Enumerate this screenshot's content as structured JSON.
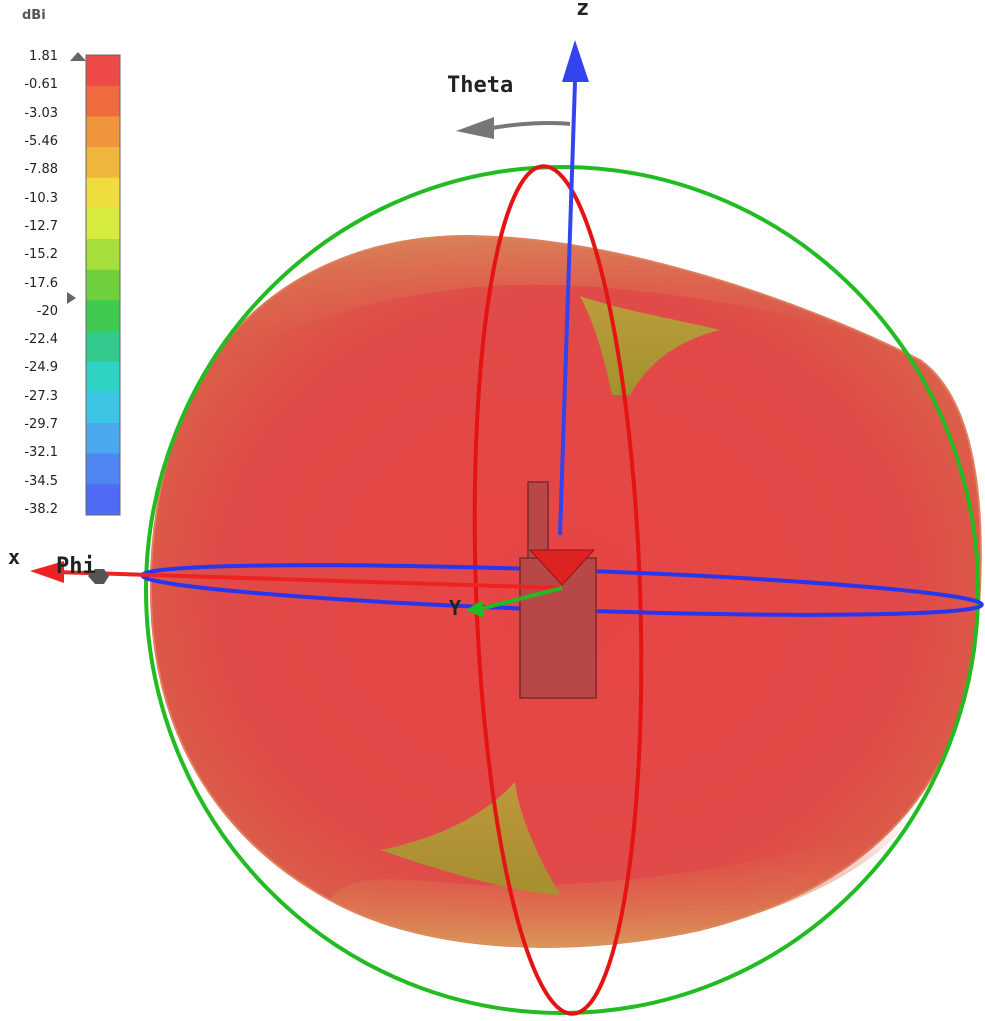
{
  "colorbar": {
    "unit": "dBi",
    "ticks": [
      "1.81",
      "-0.61",
      "-3.03",
      "-5.46",
      "-7.88",
      "-10.3",
      "-12.7",
      "-15.2",
      "-17.6",
      "-20",
      "-22.4",
      "-24.9",
      "-27.3",
      "-29.7",
      "-32.1",
      "-34.5",
      "-38.2"
    ],
    "colors": [
      "#ee4a4a",
      "#ef6a3f",
      "#f0953b",
      "#f0b63c",
      "#efdc3f",
      "#d7ea3f",
      "#a6de3c",
      "#6ed13c",
      "#3fc94f",
      "#32c98d",
      "#2fd2c3",
      "#3dc5e6",
      "#4aa8ee",
      "#4d86f2",
      "#4f6bf5"
    ]
  },
  "axes": {
    "z_label": "z",
    "x_label": "x",
    "y_label": "Y",
    "theta_label": "Theta",
    "phi_label": "Phi"
  },
  "colors": {
    "pattern": "#e04848",
    "pattern_dark": "#c03838",
    "green_circle": "#22bb22",
    "red_circle": "#e41414",
    "blue_circle": "#2a36ee",
    "z_axis": "#3344ee",
    "x_axis": "#ee2222",
    "y_axis": "#22bb22",
    "antenna": "#b84848"
  }
}
